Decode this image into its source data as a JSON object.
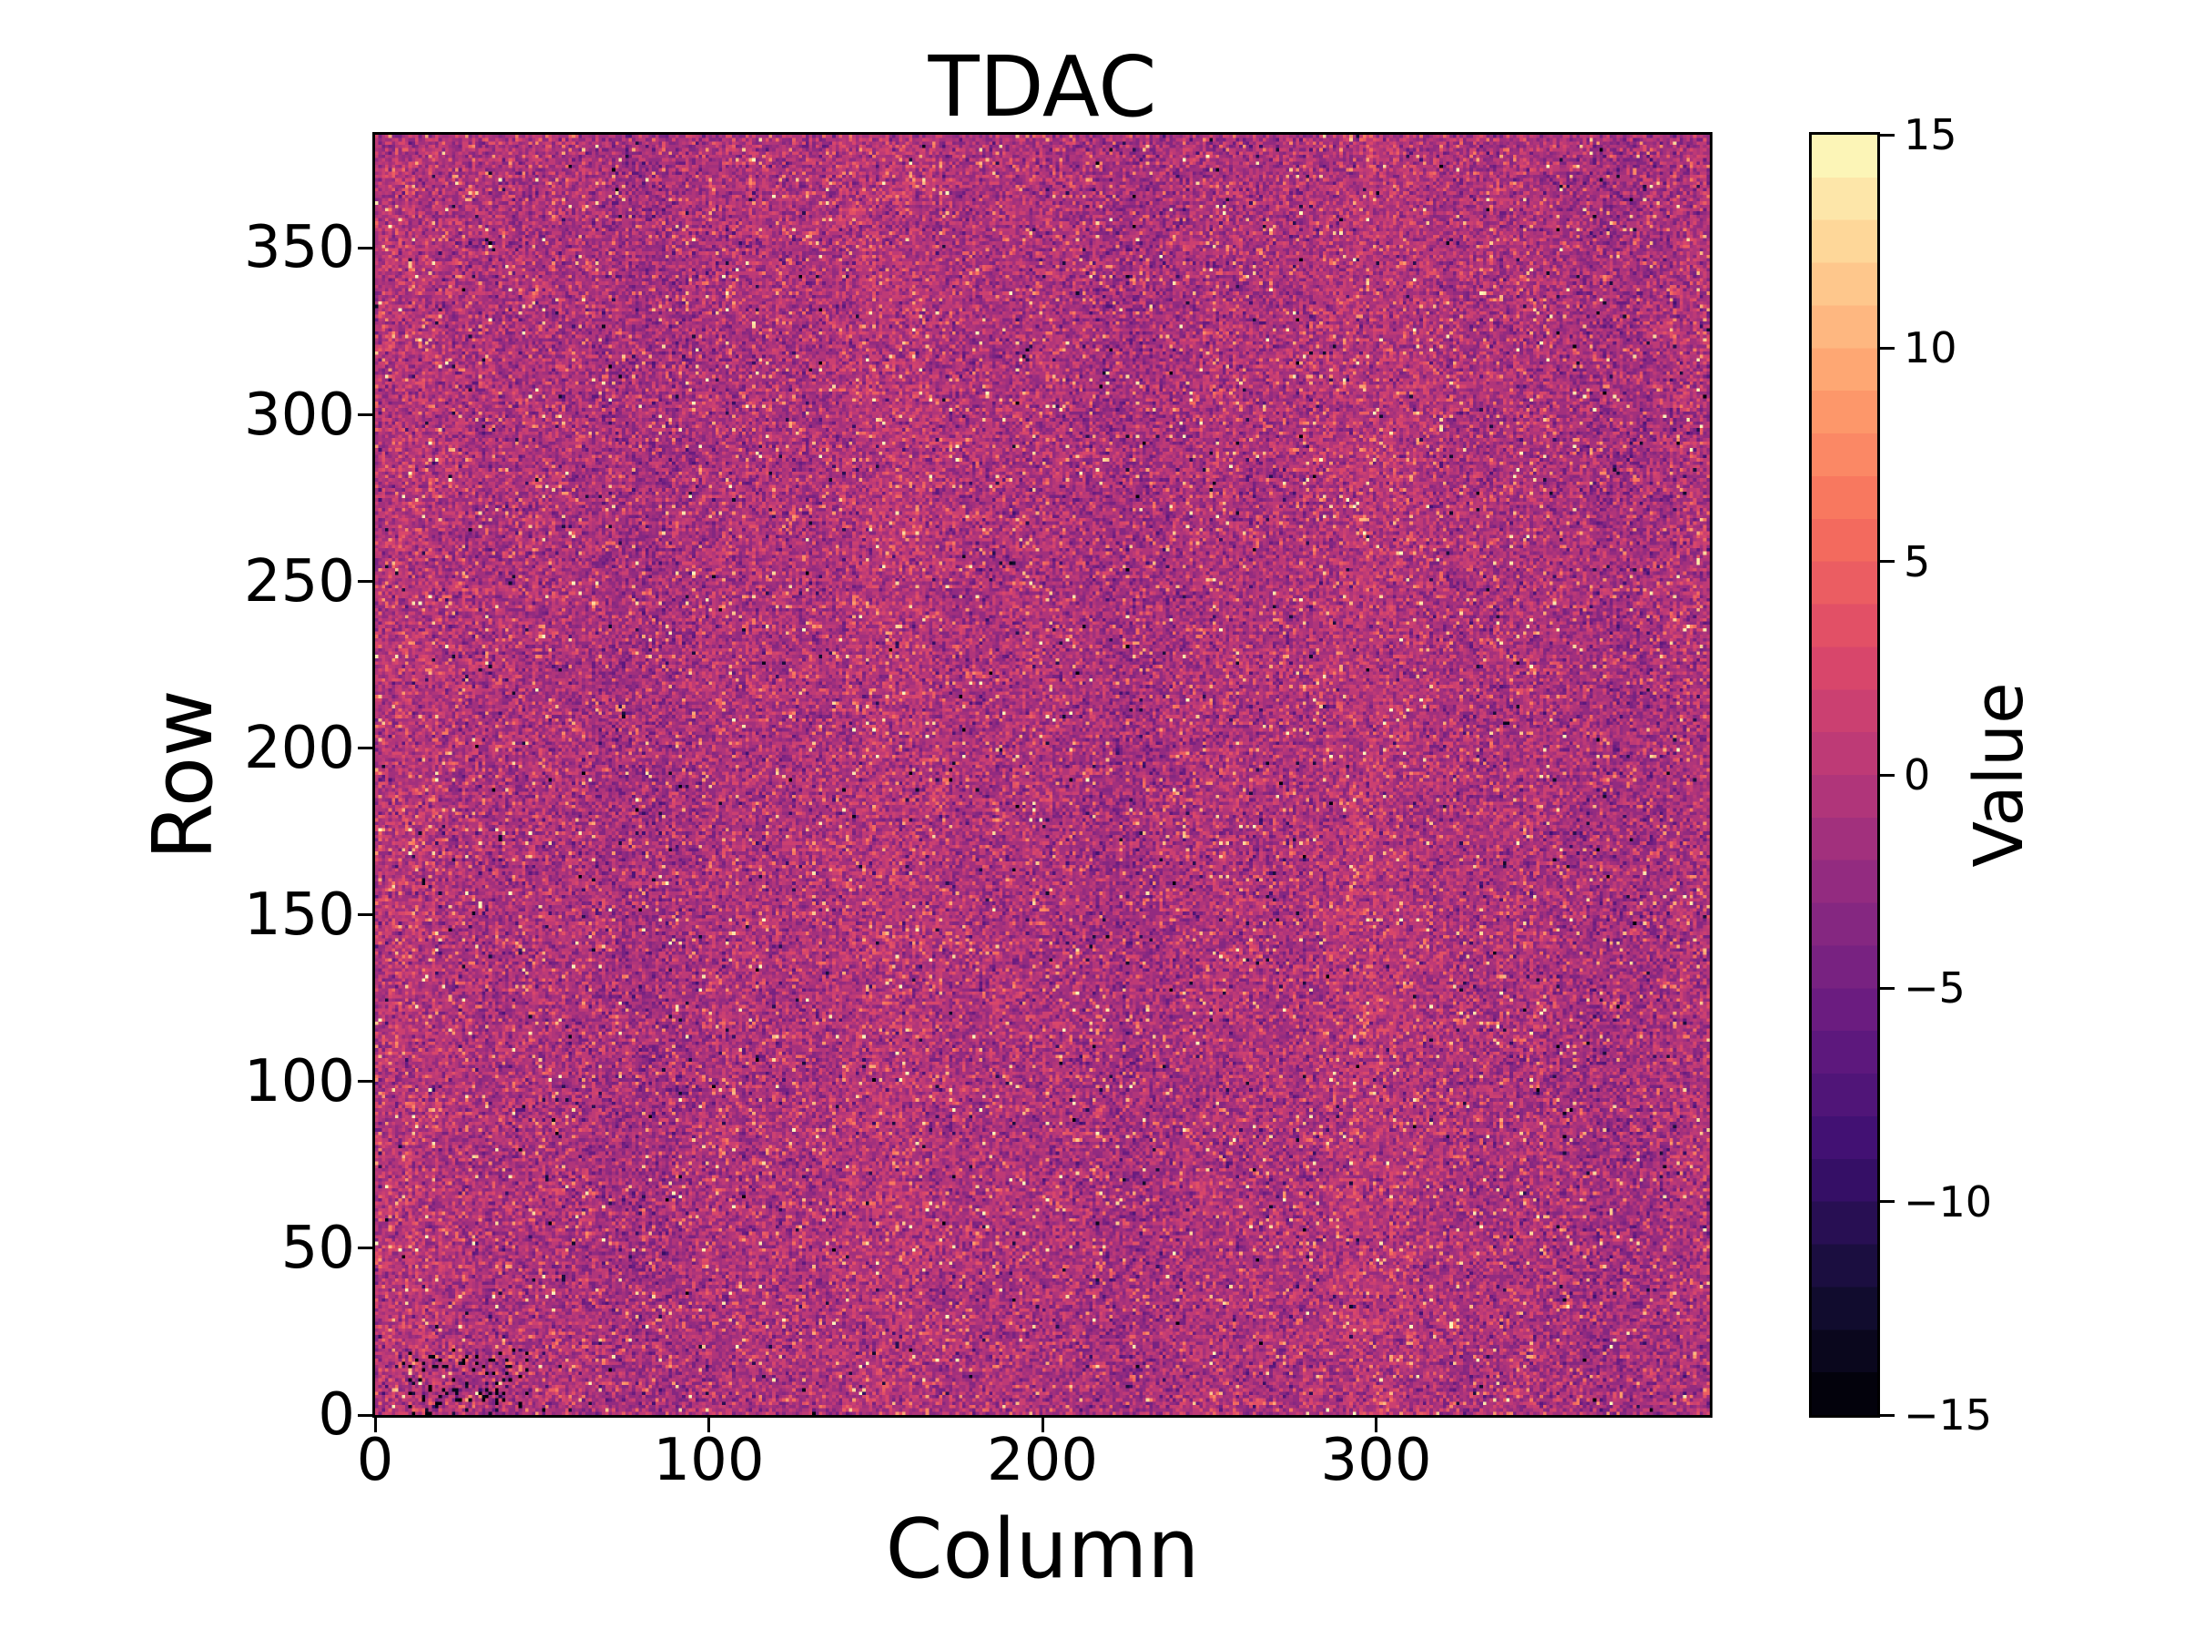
{
  "figure": {
    "background_color": "#ffffff",
    "text_color": "#000000"
  },
  "chart_data": {
    "type": "heatmap",
    "title": "TDAC",
    "xlabel": "Column",
    "ylabel": "Row",
    "colorbar_label": "Value",
    "x_range": [
      0,
      400
    ],
    "y_range": [
      0,
      384
    ],
    "x_ticks": [
      0,
      100,
      200,
      300
    ],
    "y_ticks": [
      0,
      50,
      100,
      150,
      200,
      250,
      300,
      350
    ],
    "colorbar_ticks": [
      15,
      10,
      5,
      0,
      -5,
      -10,
      -15
    ],
    "value_range": [
      -15,
      15
    ],
    "n_color_bins": 30,
    "grid": false,
    "legend": false,
    "colormap": {
      "name": "magma",
      "stops": [
        "#000004",
        "#140e36",
        "#3b0f70",
        "#641a80",
        "#8c2981",
        "#b73779",
        "#de4968",
        "#f7705c",
        "#fe9f6d",
        "#fecf92",
        "#fcfdbf"
      ]
    },
    "data_summary": {
      "description": "Per-pixel TDAC tuning-DAC noise map, 400 columns x 384 rows. Values are integers in [-15,15]; bulk is centered near 0 (magenta/purple), with sparse bright outliers (orange/yellow, +5..+15), sparse dark outliers (navy/black, -8..-15), subtle vertical column banding, and a small cluster of near -15 (black) pixels near the bottom-left corner (rows < 20, cols ~10-45).",
      "generator": {
        "seed": 42,
        "bulk": {
          "weight": 0.942,
          "mean": -0.8,
          "sigma": 2.3
        },
        "bright_outliers": {
          "weight": 0.045,
          "mean": 6.5,
          "sigma": 2.5
        },
        "hot_outliers": {
          "weight": 0.006,
          "mean": 13.0,
          "sigma": 1.5
        },
        "dark_outliers": {
          "weight": 0.007,
          "mean": -10.5,
          "sigma": 2.5
        },
        "column_band": {
          "amp1": 0.45,
          "period1": 23,
          "phase1": 1.3,
          "amp2": 0.3,
          "period2": 7.7,
          "phase2": 0.5
        },
        "dark_cluster": {
          "row_max": 20,
          "col_min": 10,
          "col_max": 45,
          "probability": 0.1,
          "mean": -14.0,
          "sigma": 1.0
        }
      }
    }
  }
}
